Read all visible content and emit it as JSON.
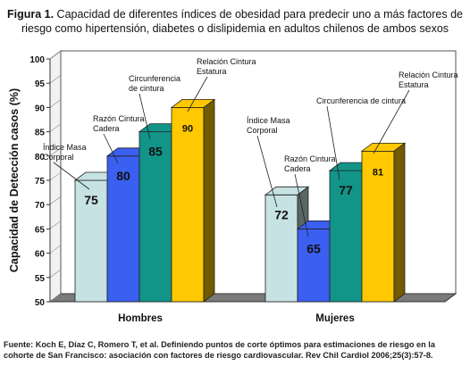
{
  "figure": {
    "label": "Figura 1.",
    "title": "Capacidad de diferentes índices de obesidad para predecir uno a más factores de riesgo como hipertensión, diabetes o dislipidemia en adultos chilenos de ambos sexos",
    "source": "Fuente: Koch E, Díaz C, Romero T, et al. Definiendo puntos de corte óptimos para estimaciones de riesgo en la cohorte de San Francisco: asociación con factores de riesgo cardiovascular. Rev Chil Cardiol 2006;25(3):57-8."
  },
  "chart_data": {
    "type": "bar",
    "categories": [
      "Hombres",
      "Mujeres"
    ],
    "series": [
      {
        "name": "Índice Masa Corporal",
        "values": [
          75,
          72
        ],
        "color": "#c7e2e3"
      },
      {
        "name": "Razón Cintura Cadera",
        "values": [
          80,
          65
        ],
        "color": "#3b5ff0"
      },
      {
        "name": "Circunferencia de cintura",
        "values": [
          85,
          77
        ],
        "color": "#129488"
      },
      {
        "name": "Relación Cintura Estatura",
        "values": [
          90,
          81
        ],
        "color": "#ffc800"
      }
    ],
    "ylabel": "Capacidad de Detección casos (%)",
    "xlabel": "",
    "ylim": [
      50,
      100
    ],
    "yticks": [
      50,
      55,
      60,
      65,
      70,
      75,
      80,
      85,
      90,
      95,
      100
    ],
    "grid": false,
    "legend": "callouts",
    "style": "3d-bar",
    "callouts": {
      "Hombres": [
        [
          "Índice Masa",
          "Corporal"
        ],
        [
          "Razón Cintura",
          "Cadera"
        ],
        [
          "Circunferencia",
          "de cintura"
        ],
        [
          "Relación Cintura",
          "Estatura"
        ]
      ],
      "Mujeres": [
        [
          "Índice Masa",
          "Corporal"
        ],
        [
          "Razón Cintura",
          "Cadera"
        ],
        [
          "Circunferencia de cintura"
        ],
        [
          "Relación Cintura",
          "Estatura"
        ]
      ]
    }
  }
}
